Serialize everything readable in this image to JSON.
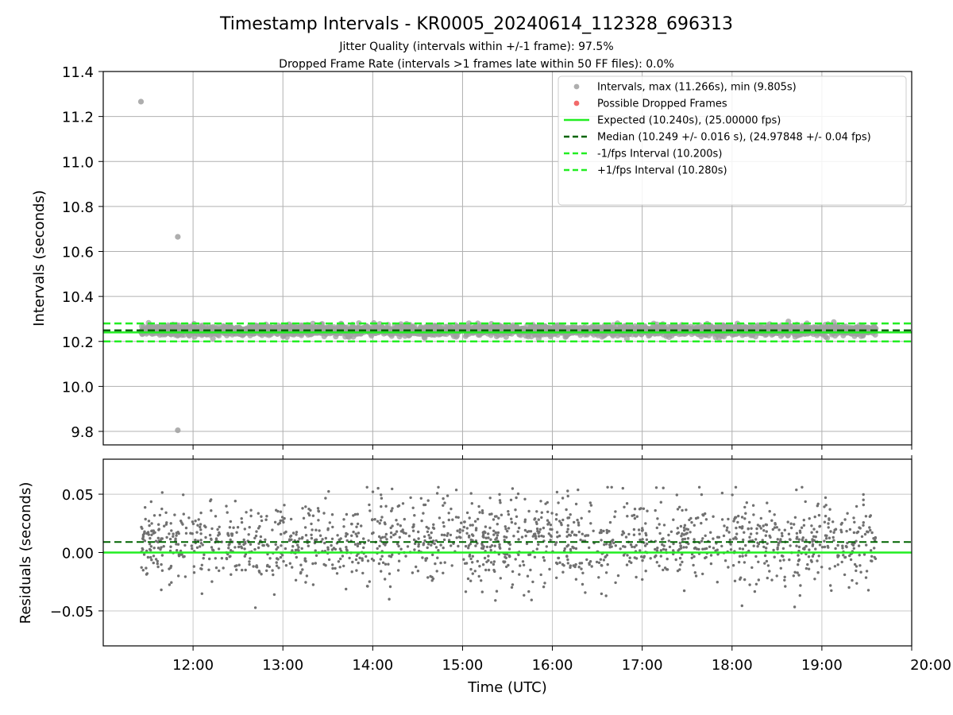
{
  "chart_data": [
    {
      "type": "scatter",
      "title": "Timestamp Intervals - KR0005_20240614_112328_696313",
      "subtitle_lines": [
        "Jitter Quality (intervals within +/-1 frame): 97.5%",
        "Dropped Frame Rate (intervals >1 frames late within 50 FF files): 0.0%"
      ],
      "xlabel": "",
      "ylabel": "Intervals (seconds)",
      "x_unit": "hours UTC",
      "xlim": [
        11.0,
        20.0
      ],
      "ylim": [
        9.74,
        11.4
      ],
      "yticks": [
        9.8,
        10.0,
        10.2,
        10.4,
        10.6,
        10.8,
        11.0,
        11.2,
        11.4
      ],
      "ytick_labels": [
        "9.8",
        "10.0",
        "10.2",
        "10.4",
        "10.6",
        "10.8",
        "11.0",
        "11.2",
        "11.4"
      ],
      "xticks": [
        12,
        13,
        14,
        15,
        16,
        17,
        18,
        19,
        20
      ],
      "grid": true,
      "legend_placement": "top-right",
      "legend": [
        "Intervals, max (11.266s), min (9.805s)",
        "Possible Dropped Frames",
        "Expected (10.240s), (25.00000 fps)",
        "Median (10.249 +/- 0.016 s), (24.97848 +/- 0.04 fps)",
        "-1/fps Interval (10.200s)",
        "+1/fps Interval (10.280s)"
      ],
      "reference_lines": {
        "expected": 10.24,
        "median": 10.249,
        "minus_one_fps": 10.2,
        "plus_one_fps": 10.28
      },
      "series": [
        {
          "name": "Intervals, max (11.266s), min (9.805s)",
          "x_range": [
            11.42,
            19.6
          ],
          "count": 2800,
          "center": 10.249,
          "spread": 0.016,
          "outliers": [
            {
              "x": 11.42,
              "y": 11.266
            },
            {
              "x": 11.83,
              "y": 10.665
            },
            {
              "x": 11.83,
              "y": 9.805
            }
          ]
        },
        {
          "name": "Possible Dropped Frames",
          "points": []
        }
      ],
      "colors": {
        "points": "#a0a0a0",
        "dropped": "#f05050",
        "expected": "#22ee22",
        "median": "#006400",
        "interval": "#22ee22",
        "grid": "#b0b0b0"
      }
    },
    {
      "type": "scatter",
      "xlabel": "Time (UTC)",
      "ylabel": "Residuals (seconds)",
      "xlim": [
        11.0,
        20.0
      ],
      "ylim": [
        -0.08,
        0.08
      ],
      "yticks": [
        -0.05,
        0.0,
        0.05
      ],
      "ytick_labels": [
        "−0.05",
        "0.00",
        "0.05"
      ],
      "xticks": [
        12,
        13,
        14,
        15,
        16,
        17,
        18,
        19,
        20
      ],
      "xtick_labels": [
        "12:00",
        "13:00",
        "14:00",
        "15:00",
        "16:00",
        "17:00",
        "18:00",
        "19:00",
        "20:00"
      ],
      "grid": true,
      "reference_lines": {
        "zero": 0.0,
        "median_offset": 0.009
      },
      "series": [
        {
          "name": "",
          "x_range": [
            11.42,
            19.6
          ],
          "count": 1600,
          "center": 0.009,
          "spread": 0.018
        }
      ],
      "colors": {
        "points": "#707070",
        "zero": "#22ee22",
        "median": "#006400",
        "grid": "#c8c8c8"
      }
    }
  ]
}
